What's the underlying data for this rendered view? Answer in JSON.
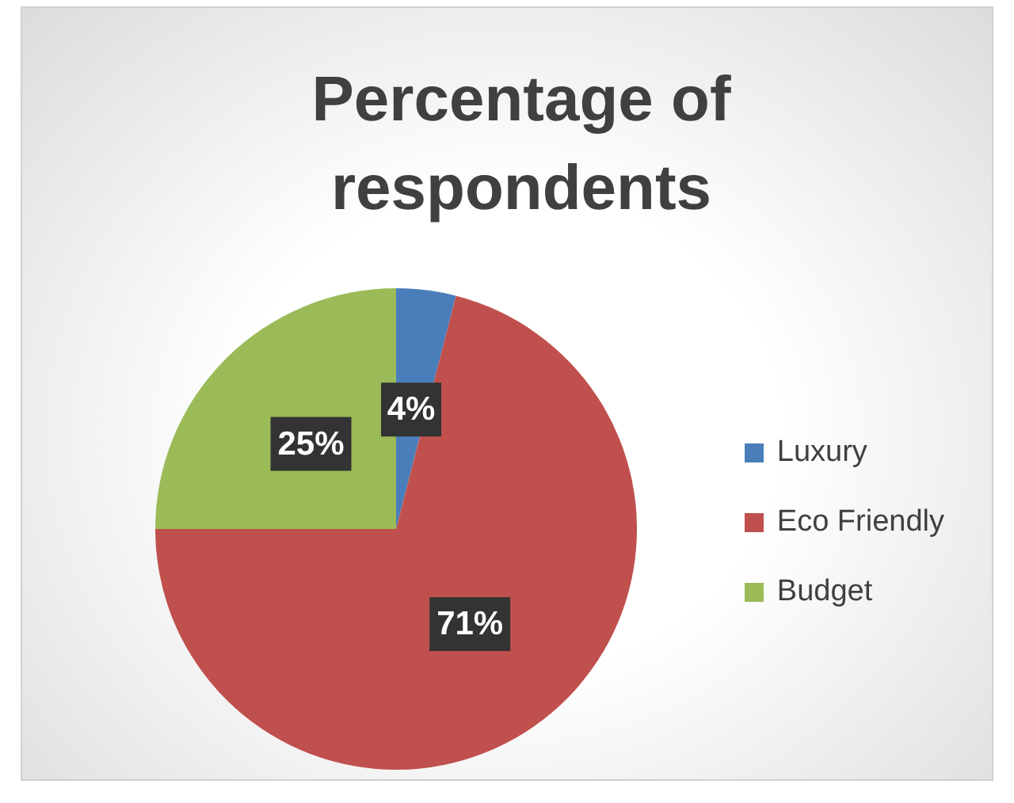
{
  "chart_data": {
    "type": "pie",
    "title": "Percentage of respondents",
    "categories": [
      "Luxury",
      "Eco Friendly",
      "Budget"
    ],
    "values": [
      4,
      71,
      25
    ],
    "value_labels": [
      "4%",
      "71%",
      "25%"
    ],
    "colors": [
      "#4a7ebb",
      "#c0504d",
      "#9bbb59"
    ],
    "legend": "right"
  }
}
